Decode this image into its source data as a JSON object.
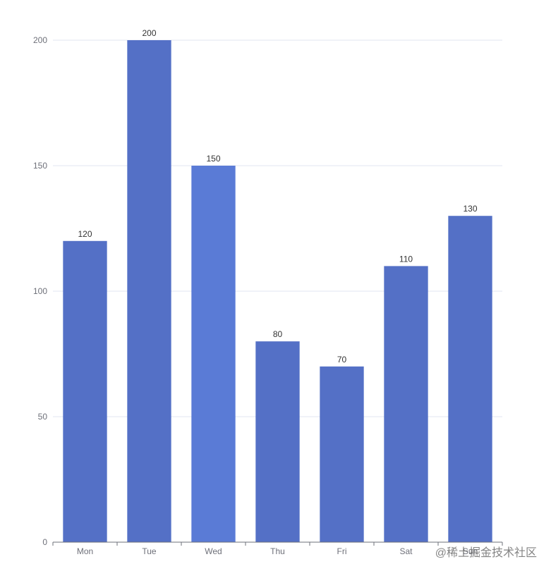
{
  "chart_data": {
    "type": "bar",
    "categories": [
      "Mon",
      "Tue",
      "Wed",
      "Thu",
      "Fri",
      "Sat",
      "Sun"
    ],
    "values": [
      120,
      200,
      150,
      80,
      70,
      110,
      130
    ],
    "ylim": [
      0,
      200
    ],
    "yticks": [
      0,
      50,
      100,
      150,
      200
    ],
    "grid": true,
    "data_labels": true,
    "colors": {
      "bar": "#5470c6",
      "bar_highlight": "#5a7bd6",
      "grid": "#e0e6f1",
      "axis": "#6e7079",
      "label": "#333333"
    }
  },
  "watermark": {
    "text": "@稀土掘金技术社区"
  }
}
